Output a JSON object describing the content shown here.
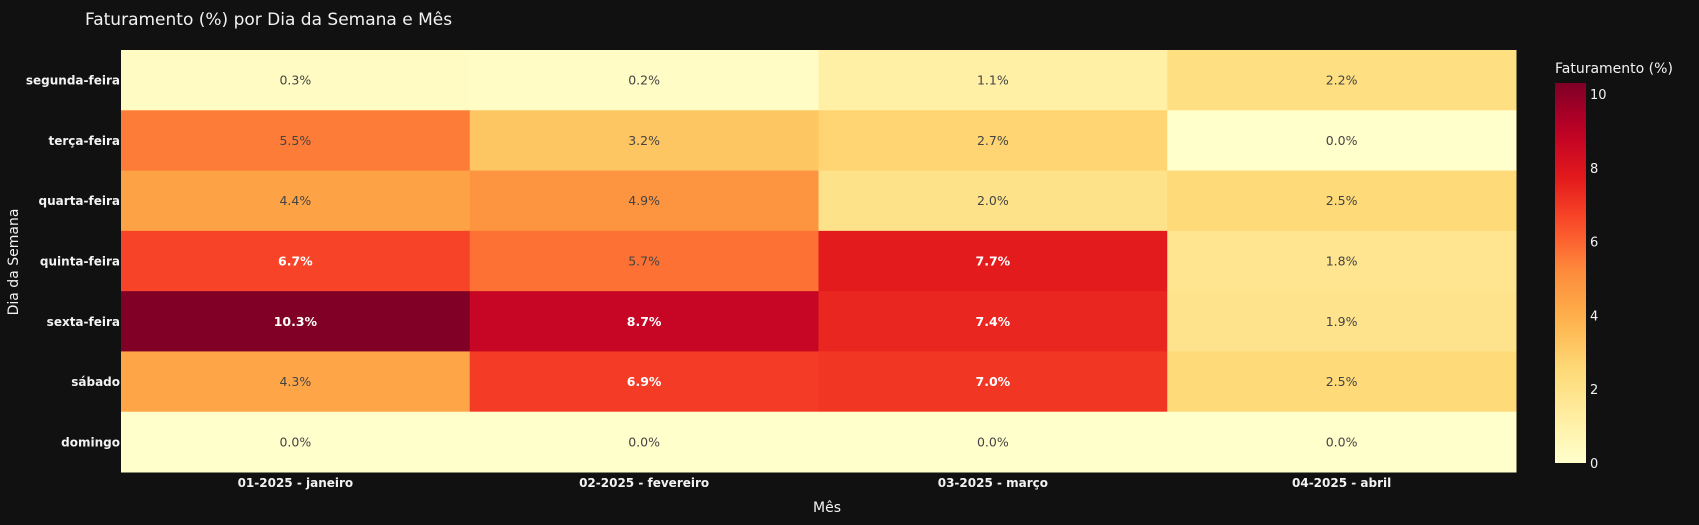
{
  "chart_data": {
    "type": "heatmap",
    "title": "Faturamento (%) por Dia da Semana e Mês",
    "xlabel": "Mês",
    "ylabel": "Dia da Semana",
    "x": [
      "01-2025 - janeiro",
      "02-2025 - fevereiro",
      "03-2025 - março",
      "04-2025 - abril"
    ],
    "y": [
      "segunda-feira",
      "terça-feira",
      "quarta-feira",
      "quinta-feira",
      "sexta-feira",
      "sábado",
      "domingo"
    ],
    "z": [
      [
        0.3,
        0.2,
        1.1,
        2.2
      ],
      [
        5.5,
        3.2,
        2.7,
        0.0
      ],
      [
        4.4,
        4.9,
        2.0,
        2.5
      ],
      [
        6.7,
        5.7,
        7.7,
        1.8
      ],
      [
        10.3,
        8.7,
        7.4,
        1.9
      ],
      [
        4.3,
        6.9,
        7.0,
        2.5
      ],
      [
        0.0,
        0.0,
        0.0,
        0.0
      ]
    ],
    "text": [
      [
        "0.3%",
        "0.2%",
        "1.1%",
        "2.2%"
      ],
      [
        "5.5%",
        "3.2%",
        "2.7%",
        "0.0%"
      ],
      [
        "4.4%",
        "4.9%",
        "2.0%",
        "2.5%"
      ],
      [
        "6.7%",
        "5.7%",
        "7.7%",
        "1.8%"
      ],
      [
        "10.3%",
        "8.7%",
        "7.4%",
        "1.9%"
      ],
      [
        "4.3%",
        "6.9%",
        "7.0%",
        "2.5%"
      ],
      [
        "0.0%",
        "0.0%",
        "0.0%",
        "0.0%"
      ]
    ],
    "colorscale": "YlOrRd",
    "zmin": 0,
    "zmax": 10.3,
    "colorbar": {
      "title": "Faturamento (%)",
      "ticks": [
        "0",
        "2",
        "4",
        "6",
        "8",
        "10"
      ]
    },
    "colors": {
      "background": "#111111",
      "text": "#f2f2f2"
    }
  }
}
